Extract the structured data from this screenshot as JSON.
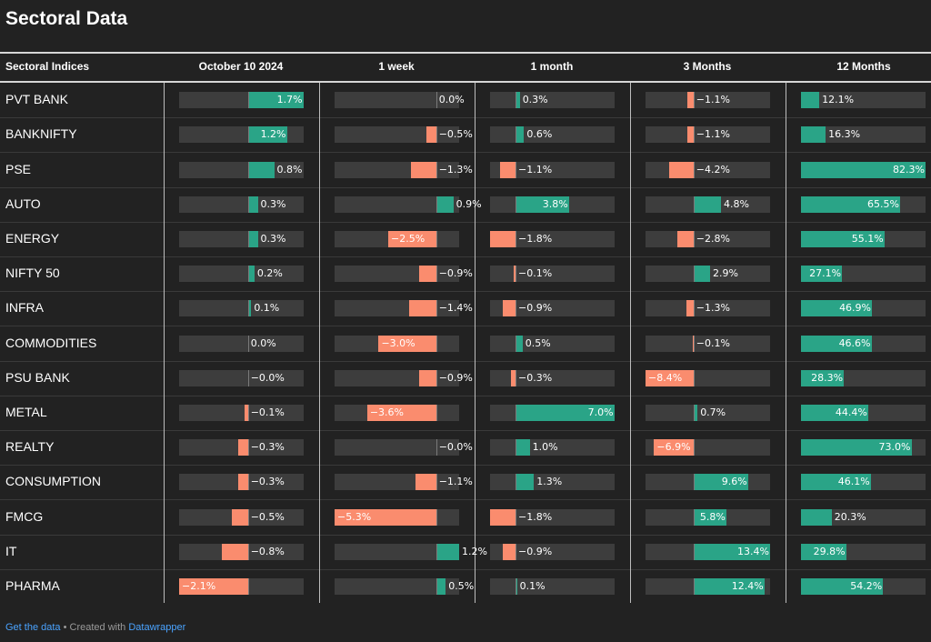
{
  "title": "Sectoral Data",
  "footer": {
    "get_data": "Get the data",
    "separator": " • Created with ",
    "tool": "Datawrapper"
  },
  "colors": {
    "positive": "#2aa487",
    "negative": "#fa8c6e",
    "track": "#3d3d3d",
    "background": "#222222"
  },
  "chart_data": {
    "type": "table",
    "row_header": "Sectoral Indices",
    "columns": [
      {
        "name": "October 10 2024",
        "range": [
          -2.1,
          1.7
        ]
      },
      {
        "name": "1 week",
        "range": [
          -5.3,
          1.2
        ]
      },
      {
        "name": "1 month",
        "range": [
          -1.8,
          7.0
        ]
      },
      {
        "name": "3 Months",
        "range": [
          -8.4,
          13.4
        ]
      },
      {
        "name": "12 Months",
        "range": [
          0,
          82.3
        ]
      }
    ],
    "rows": [
      {
        "name": "PVT BANK",
        "values": [
          1.7,
          0.0,
          0.3,
          -1.1,
          12.1
        ],
        "labels": [
          "1.7%",
          "0.0%",
          "0.3%",
          "−1.1%",
          "12.1%"
        ]
      },
      {
        "name": "BANKNIFTY",
        "values": [
          1.2,
          -0.5,
          0.6,
          -1.1,
          16.3
        ],
        "labels": [
          "1.2%",
          "−0.5%",
          "0.6%",
          "−1.1%",
          "16.3%"
        ]
      },
      {
        "name": "PSE",
        "values": [
          0.8,
          -1.3,
          -1.1,
          -4.2,
          82.3
        ],
        "labels": [
          "0.8%",
          "−1.3%",
          "−1.1%",
          "−4.2%",
          "82.3%"
        ]
      },
      {
        "name": "AUTO",
        "values": [
          0.3,
          0.9,
          3.8,
          4.8,
          65.5
        ],
        "labels": [
          "0.3%",
          "0.9%",
          "3.8%",
          "4.8%",
          "65.5%"
        ]
      },
      {
        "name": "ENERGY",
        "values": [
          0.3,
          -2.5,
          -1.8,
          -2.8,
          55.1
        ],
        "labels": [
          "0.3%",
          "−2.5%",
          "−1.8%",
          "−2.8%",
          "55.1%"
        ]
      },
      {
        "name": "NIFTY 50",
        "values": [
          0.2,
          -0.9,
          -0.1,
          2.9,
          27.1
        ],
        "labels": [
          "0.2%",
          "−0.9%",
          "−0.1%",
          "2.9%",
          "27.1%"
        ]
      },
      {
        "name": "INFRA",
        "values": [
          0.1,
          -1.4,
          -0.9,
          -1.3,
          46.9
        ],
        "labels": [
          "0.1%",
          "−1.4%",
          "−0.9%",
          "−1.3%",
          "46.9%"
        ]
      },
      {
        "name": "COMMODITIES",
        "values": [
          0.0,
          -3.0,
          0.5,
          -0.1,
          46.6
        ],
        "labels": [
          "0.0%",
          "−3.0%",
          "0.5%",
          "−0.1%",
          "46.6%"
        ]
      },
      {
        "name": "PSU BANK",
        "values": [
          -0.0,
          -0.9,
          -0.3,
          -8.4,
          28.3
        ],
        "labels": [
          "−0.0%",
          "−0.9%",
          "−0.3%",
          "−8.4%",
          "28.3%"
        ]
      },
      {
        "name": "METAL",
        "values": [
          -0.1,
          -3.6,
          7.0,
          0.7,
          44.4
        ],
        "labels": [
          "−0.1%",
          "−3.6%",
          "7.0%",
          "0.7%",
          "44.4%"
        ]
      },
      {
        "name": "REALTY",
        "values": [
          -0.3,
          -0.0,
          1.0,
          -6.9,
          73.0
        ],
        "labels": [
          "−0.3%",
          "−0.0%",
          "1.0%",
          "−6.9%",
          "73.0%"
        ]
      },
      {
        "name": "CONSUMPTION",
        "values": [
          -0.3,
          -1.1,
          1.3,
          9.6,
          46.1
        ],
        "labels": [
          "−0.3%",
          "−1.1%",
          "1.3%",
          "9.6%",
          "46.1%"
        ]
      },
      {
        "name": "FMCG",
        "values": [
          -0.5,
          -5.3,
          -1.8,
          5.8,
          20.3
        ],
        "labels": [
          "−0.5%",
          "−5.3%",
          "−1.8%",
          "5.8%",
          "20.3%"
        ]
      },
      {
        "name": "IT",
        "values": [
          -0.8,
          1.2,
          -0.9,
          13.4,
          29.8
        ],
        "labels": [
          "−0.8%",
          "1.2%",
          "−0.9%",
          "13.4%",
          "29.8%"
        ]
      },
      {
        "name": "PHARMA",
        "values": [
          -2.1,
          0.5,
          0.1,
          12.4,
          54.2
        ],
        "labels": [
          "−2.1%",
          "0.5%",
          "0.1%",
          "12.4%",
          "54.2%"
        ]
      }
    ]
  }
}
